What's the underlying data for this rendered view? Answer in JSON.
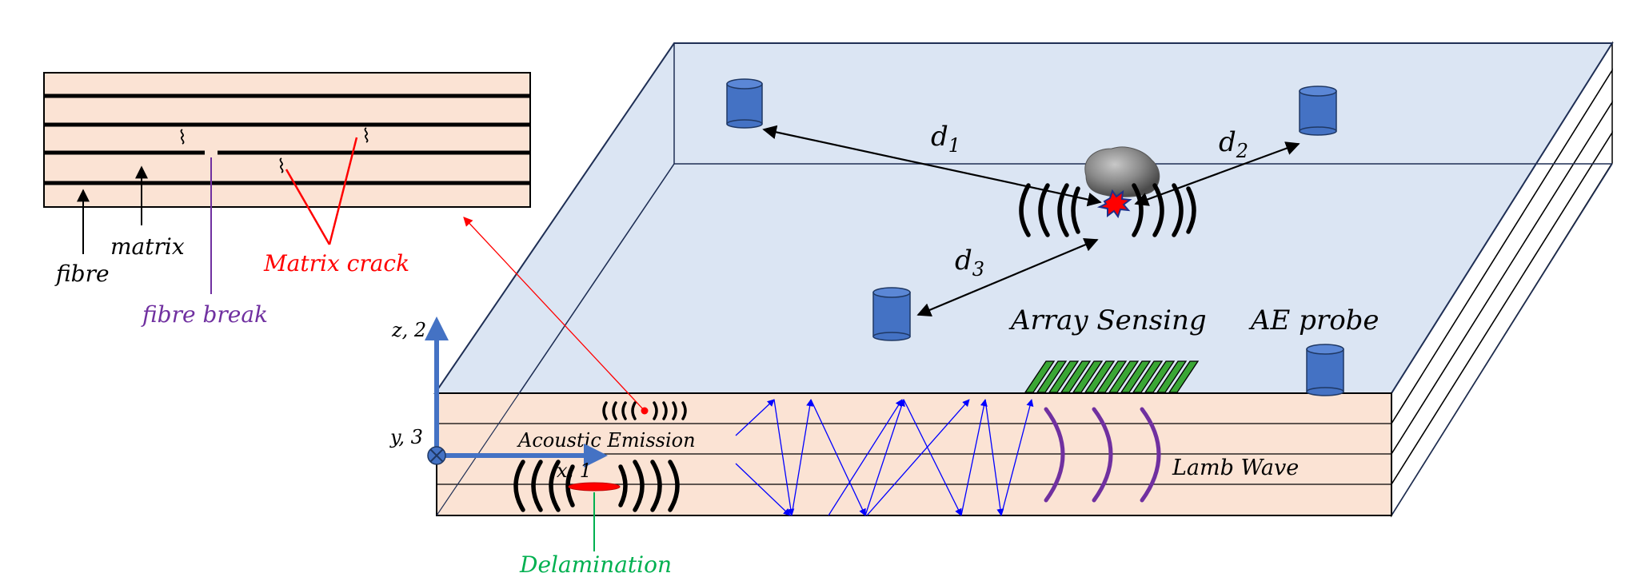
{
  "diagram": {
    "inset": {
      "labels": {
        "fibre": "fibre",
        "matrix": "matrix",
        "matrix_crack": "Matrix crack",
        "fibre_break": "fibre break"
      }
    },
    "axes": {
      "z_label": "z, 2",
      "y_label": "y, 3",
      "x_label": "x, 1"
    },
    "plate": {
      "acoustic_emission": "Acoustic Emission",
      "delamination": "Delamination",
      "lamb_wave": "Lamb Wave",
      "array_sensing": "Array Sensing",
      "ae_probe": "AE probe"
    },
    "distances": [
      {
        "base": "d",
        "sub": "1"
      },
      {
        "base": "d",
        "sub": "2"
      },
      {
        "base": "d",
        "sub": "3"
      }
    ],
    "colors": {
      "plate_top": "#dbe5f3",
      "laminate": "#fbe3d4",
      "sensor": "#4472c4",
      "axis": "#4472c4",
      "crack": "#ff0000",
      "fibre_break": "#7030a0",
      "delamination": "#00b050",
      "lamb_wave": "#7030a0",
      "reflection": "#0000ff",
      "array_element": "#3aa635"
    }
  }
}
